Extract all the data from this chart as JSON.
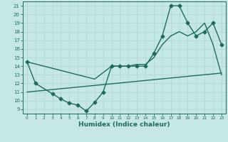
{
  "bg_color": "#c5e8e4",
  "grid_color": "#b0d8d4",
  "line_color": "#1e6b5e",
  "xlabel": "Humidex (Indice chaleur)",
  "xlim": [
    -0.5,
    23.5
  ],
  "ylim": [
    8.5,
    21.5
  ],
  "xticks": [
    0,
    1,
    2,
    3,
    4,
    5,
    6,
    7,
    8,
    9,
    10,
    11,
    12,
    13,
    14,
    15,
    16,
    17,
    18,
    19,
    20,
    21,
    22,
    23
  ],
  "yticks": [
    9,
    10,
    11,
    12,
    13,
    14,
    15,
    16,
    17,
    18,
    19,
    20,
    21
  ],
  "series1_x": [
    0,
    1,
    3,
    4,
    5,
    6,
    7,
    8,
    9,
    10,
    11,
    12,
    13,
    14,
    15,
    16,
    17,
    18,
    19,
    20,
    21,
    22,
    23
  ],
  "series1_y": [
    14.5,
    12.0,
    10.8,
    10.2,
    9.7,
    9.5,
    8.8,
    9.8,
    11.0,
    14.0,
    14.0,
    14.0,
    14.0,
    14.0,
    15.5,
    17.5,
    21.0,
    21.0,
    19.0,
    17.5,
    18.0,
    19.0,
    16.5
  ],
  "series2_x": [
    0,
    8,
    10,
    11,
    12,
    13,
    14,
    15,
    16,
    17,
    18,
    19,
    20,
    21,
    22,
    23
  ],
  "series2_y": [
    14.5,
    12.5,
    14.0,
    14.0,
    14.0,
    14.2,
    14.2,
    15.0,
    16.5,
    17.5,
    18.0,
    17.5,
    18.0,
    19.0,
    16.5,
    13.0
  ],
  "series3_x": [
    0,
    23
  ],
  "series3_y": [
    11.0,
    13.2
  ],
  "markersize": 2.5,
  "linewidth": 1.0
}
